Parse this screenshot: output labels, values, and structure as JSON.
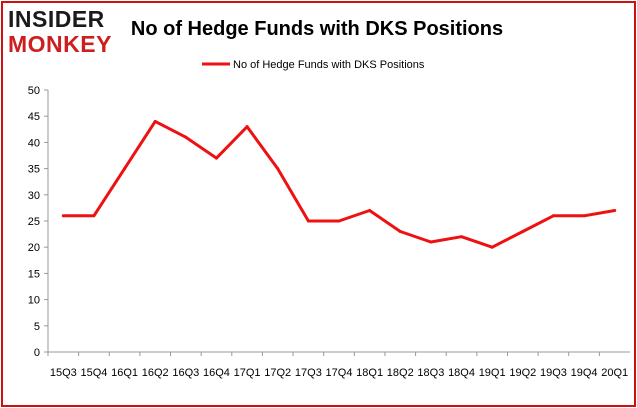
{
  "logo": {
    "line1": "INSIDER",
    "line2": "MONKEY"
  },
  "colors": {
    "brand": "#cc1f1f",
    "series": "#ee1111",
    "border": "#cc1111",
    "axis": "#999999"
  },
  "chart_data": {
    "type": "line",
    "title": "No of Hedge Funds with DKS Positions",
    "xlabel": "",
    "ylabel": "",
    "ylim": [
      0,
      50
    ],
    "yticks": [
      0,
      5,
      10,
      15,
      20,
      25,
      30,
      35,
      40,
      45,
      50
    ],
    "grid": false,
    "legend_placement": "top-center",
    "categories": [
      "15Q3",
      "15Q4",
      "16Q1",
      "16Q2",
      "16Q3",
      "16Q4",
      "17Q1",
      "17Q2",
      "17Q3",
      "17Q4",
      "18Q1",
      "18Q2",
      "18Q3",
      "18Q4",
      "19Q1",
      "19Q2",
      "19Q3",
      "19Q4",
      "20Q1"
    ],
    "series": [
      {
        "name": "No of Hedge Funds with DKS Positions",
        "values": [
          26,
          26,
          35,
          44,
          41,
          37,
          43,
          35,
          25,
          25,
          27,
          23,
          21,
          22,
          20,
          23,
          26,
          26,
          27
        ]
      }
    ]
  }
}
